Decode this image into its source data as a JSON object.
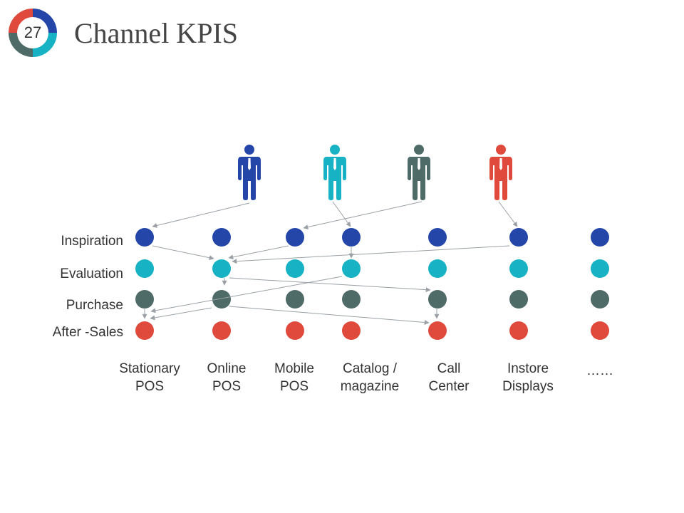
{
  "header": {
    "slide_number": "27",
    "title": "Channel KPIS"
  },
  "stages": [
    "Inspiration",
    "Evaluation",
    "Purchase",
    "After -Sales"
  ],
  "channels": [
    [
      "Stationary",
      "POS"
    ],
    [
      "Online",
      "POS"
    ],
    [
      "Mobile",
      "POS"
    ],
    [
      "Catalog /",
      "magazine"
    ],
    [
      "Call",
      "Center"
    ],
    [
      "Instore",
      "Displays"
    ],
    [
      "……"
    ]
  ]
}
